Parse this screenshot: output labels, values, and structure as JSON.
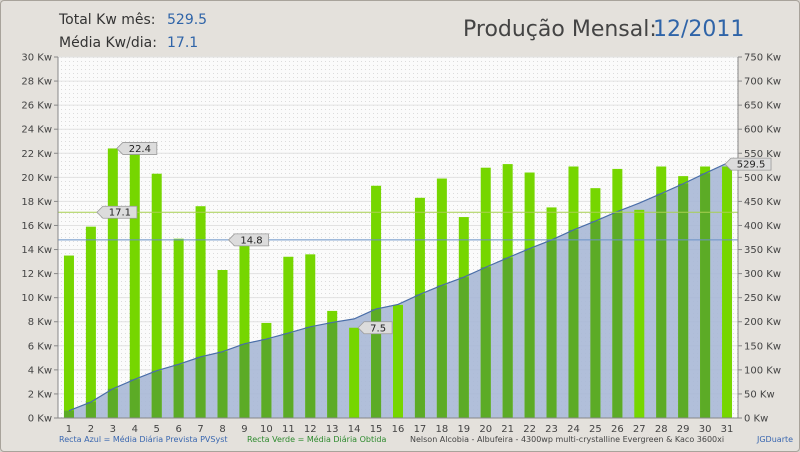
{
  "header": {
    "total_label": "Total Kw mês:",
    "total_value": "529.5",
    "avg_label": "Média Kw/dia:",
    "avg_value": "17.1",
    "title": "Produção Mensal:",
    "period": "12/2011"
  },
  "footer": {
    "legend_blue": "Recta Azul = Média Diária Prevista PVSyst",
    "legend_green": "Recta Verde = Média Diária Obtida",
    "installation": "Nelson Alcobia - Albufeira - 4300wp multi-crystalline Evergreen & Kaco 3600xi",
    "credit": "JGDuarte"
  },
  "colors": {
    "bar": "#76d600",
    "bar_dark": "#5aa62a",
    "area": "#a8b8d6",
    "area_line": "#4a6ea8",
    "blue_line": "#6a92c8",
    "green_line": "#a8d050"
  },
  "chart_data": {
    "type": "bar",
    "categories": [
      "1",
      "2",
      "3",
      "4",
      "5",
      "6",
      "7",
      "8",
      "9",
      "10",
      "11",
      "12",
      "13",
      "14",
      "15",
      "16",
      "17",
      "18",
      "19",
      "20",
      "21",
      "22",
      "23",
      "24",
      "25",
      "26",
      "27",
      "28",
      "29",
      "30",
      "31"
    ],
    "series": [
      {
        "values": [
          13.5,
          15.9,
          22.4,
          21.9,
          20.3,
          14.9,
          17.6,
          12.3,
          14.8,
          7.9,
          13.4,
          13.6,
          8.9,
          7.5,
          19.3,
          9.4,
          18.3,
          19.9,
          16.7,
          20.8,
          21.1,
          20.4,
          17.5,
          20.9,
          19.1,
          20.7,
          17.3,
          20.9,
          20.1,
          20.9,
          20.9
        ]
      },
      {
        "values": [
          15.3,
          33.1,
          60.7,
          80.4,
          98.3,
          111.5,
          127.0,
          137.8,
          154.1,
          164.0,
          176.4,
          189.4,
          198.6,
          205.9,
          226.5,
          235.9,
          256.9,
          275.6,
          292.5,
          313.2,
          332.9,
          352.1,
          369.9,
          390.8,
          409.2,
          428.8,
          446.5,
          466.2,
          486.7,
          508.4,
          529.5
        ]
      }
    ],
    "reference_lines": [
      {
        "value": 17.1,
        "label": "17.1"
      },
      {
        "value": 14.8,
        "label": "14.8"
      }
    ],
    "annotations": [
      {
        "x": "3",
        "label": "22.4"
      },
      {
        "x": "14",
        "label": "7.5"
      },
      {
        "x": "31",
        "label": "529.5"
      }
    ],
    "y_ticks_left": [
      "0 Kw",
      "2 Kw",
      "4 Kw",
      "6 Kw",
      "8 Kw",
      "10 Kw",
      "12 Kw",
      "14 Kw",
      "16 Kw",
      "18 Kw",
      "20 Kw",
      "22 Kw",
      "24 Kw",
      "26 Kw",
      "28 Kw",
      "30 Kw"
    ],
    "y_ticks_right": [
      "0 Kw",
      "50 Kw",
      "100 Kw",
      "150 Kw",
      "200 Kw",
      "250 Kw",
      "300 Kw",
      "350 Kw",
      "400 Kw",
      "450 Kw",
      "500 Kw",
      "550 Kw",
      "600 Kw",
      "650 Kw",
      "700 Kw",
      "750 Kw"
    ],
    "ylim": [
      0,
      30
    ],
    "ylim_right": [
      0,
      750
    ],
    "grid": true
  }
}
